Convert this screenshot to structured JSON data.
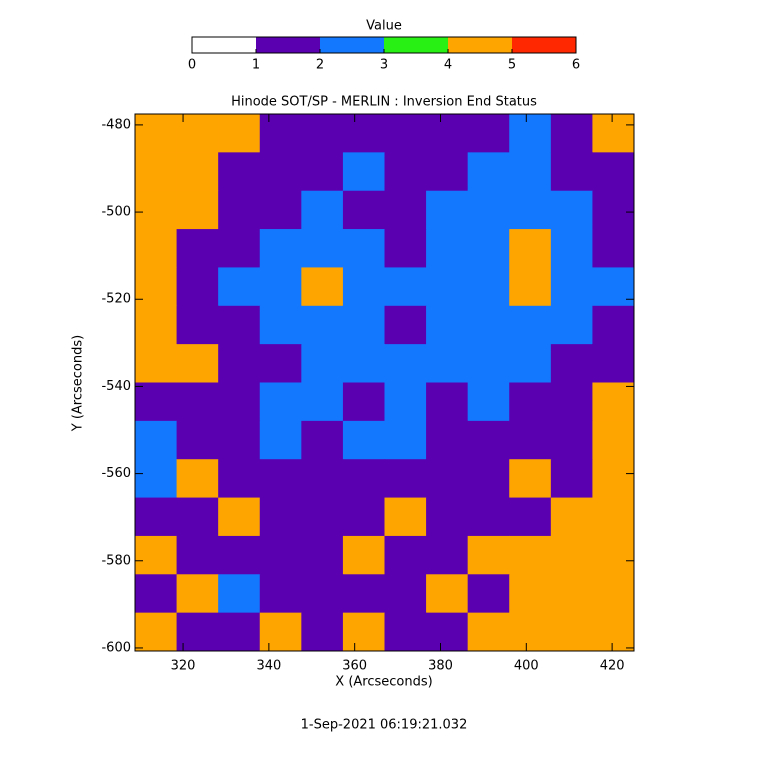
{
  "chart_data": {
    "type": "heatmap",
    "title": "Hinode SOT/SP - MERLIN : Inversion End Status",
    "x_label": "X (Arcseconds)",
    "y_label": "Y (Arcseconds)",
    "footer": "1-Sep-2021 06:19:21.032",
    "xlim": [
      308.8,
      425.1
    ],
    "ylim": [
      -600.7,
      -477.5
    ],
    "xticks": [
      320,
      340,
      360,
      380,
      400,
      420
    ],
    "yticks": [
      -600,
      -580,
      -560,
      -540,
      -520,
      -500,
      -480
    ],
    "colorbar": {
      "label": "Value",
      "ticks": [
        0,
        1,
        2,
        3,
        4,
        5,
        6
      ],
      "colors": [
        "#ffffff",
        "#5a00b0",
        "#1478ff",
        "#28f014",
        "#ffa500",
        "#ff2800"
      ]
    },
    "z": [
      [
        4,
        4,
        4,
        1,
        1,
        1,
        1,
        1,
        1,
        2,
        1,
        4
      ],
      [
        4,
        4,
        1,
        1,
        1,
        2,
        1,
        1,
        2,
        2,
        1,
        1
      ],
      [
        4,
        4,
        1,
        1,
        2,
        1,
        1,
        2,
        2,
        2,
        2,
        1
      ],
      [
        4,
        1,
        1,
        2,
        2,
        2,
        1,
        2,
        2,
        4,
        2,
        1
      ],
      [
        4,
        1,
        2,
        2,
        4,
        2,
        2,
        2,
        2,
        4,
        2,
        2
      ],
      [
        4,
        1,
        1,
        2,
        2,
        2,
        1,
        2,
        2,
        2,
        2,
        1
      ],
      [
        4,
        4,
        1,
        1,
        2,
        2,
        2,
        2,
        2,
        2,
        1,
        1
      ],
      [
        1,
        1,
        1,
        2,
        2,
        1,
        2,
        1,
        2,
        1,
        1,
        4
      ],
      [
        2,
        1,
        1,
        2,
        1,
        2,
        2,
        1,
        1,
        1,
        1,
        4
      ],
      [
        2,
        4,
        1,
        1,
        1,
        1,
        1,
        1,
        1,
        4,
        1,
        4
      ],
      [
        1,
        1,
        4,
        1,
        1,
        1,
        4,
        1,
        1,
        1,
        4,
        4
      ],
      [
        4,
        1,
        1,
        1,
        1,
        4,
        1,
        1,
        4,
        4,
        4,
        4
      ],
      [
        1,
        4,
        2,
        1,
        1,
        1,
        1,
        4,
        1,
        4,
        4,
        4
      ],
      [
        4,
        1,
        1,
        4,
        1,
        4,
        1,
        1,
        4,
        4,
        4,
        4
      ]
    ]
  }
}
